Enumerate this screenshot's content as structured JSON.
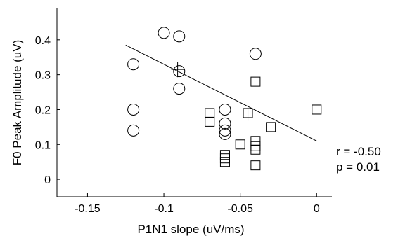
{
  "chart_data": {
    "type": "scatter",
    "title": "",
    "xlabel": "P1N1 slope (uV/ms)",
    "ylabel": "F0 Peak Amplitude (uV)",
    "xlim": [
      -0.17,
      0.01
    ],
    "ylim": [
      -0.05,
      0.49
    ],
    "x_ticks": [
      -0.15,
      -0.1,
      -0.05,
      0
    ],
    "x_tick_labels": [
      "-0.15",
      "-0.1",
      "-0.05",
      "0"
    ],
    "y_ticks": [
      0,
      0.1,
      0.2,
      0.3,
      0.4
    ],
    "y_tick_labels": [
      "0",
      "0.1",
      "0.2",
      "0.3",
      "0.4"
    ],
    "grid": false,
    "series": [
      {
        "marker": "circle",
        "points": [
          [
            -0.1,
            0.42
          ],
          [
            -0.09,
            0.41
          ],
          [
            -0.12,
            0.33
          ],
          [
            -0.09,
            0.31
          ],
          [
            -0.09,
            0.26
          ],
          [
            -0.12,
            0.2
          ],
          [
            -0.12,
            0.14
          ],
          [
            -0.04,
            0.36
          ],
          [
            -0.06,
            0.2
          ],
          [
            -0.06,
            0.16
          ],
          [
            -0.06,
            0.14
          ],
          [
            -0.06,
            0.13
          ]
        ]
      },
      {
        "marker": "square",
        "points": [
          [
            -0.04,
            0.28
          ],
          [
            -0.045,
            0.19
          ],
          [
            -0.07,
            0.19
          ],
          [
            -0.07,
            0.165
          ],
          [
            -0.03,
            0.15
          ],
          [
            0.0,
            0.2
          ],
          [
            -0.04,
            0.11
          ],
          [
            -0.04,
            0.095
          ],
          [
            -0.04,
            0.085
          ],
          [
            -0.05,
            0.1
          ],
          [
            -0.06,
            0.07
          ],
          [
            -0.06,
            0.06
          ],
          [
            -0.06,
            0.05
          ],
          [
            -0.04,
            0.04
          ]
        ]
      },
      {
        "marker": "plus",
        "points": [
          [
            -0.091,
            0.315
          ],
          [
            -0.045,
            0.19
          ]
        ]
      }
    ],
    "fit_line": {
      "x": [
        -0.125,
        0.0
      ],
      "y": [
        0.385,
        0.11
      ]
    },
    "annotations": [
      "r = -0.50",
      "p = 0.01"
    ]
  }
}
